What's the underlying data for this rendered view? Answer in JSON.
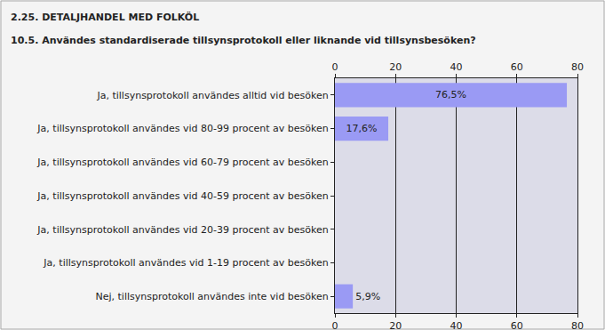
{
  "chart_data": {
    "type": "bar",
    "title": "2.25. DETALJHANDEL MED FOLKÖL",
    "subtitle": "10.5. Användes standardiserade tillsynsprotokoll eller liknande vid tillsynsbesöken?",
    "orientation": "horizontal",
    "categories": [
      "Ja, tillsynsprotokoll användes alltid vid besöken",
      "Ja, tillsynsprotokoll användes vid 80-99 procent av besöken",
      "Ja, tillsynsprotokoll användes vid 60-79 procent av besöken",
      "Ja, tillsynsprotokoll användes vid 40-59 procent av besöken",
      "Ja, tillsynsprotokoll användes vid 20-39 procent av besöken",
      "Ja, tillsynsprotokoll användes vid 1-19 procent av besöken",
      "Nej, tillsynsprotokoll användes inte vid besöken"
    ],
    "values": [
      76.5,
      17.6,
      0,
      0,
      0,
      0,
      5.9
    ],
    "value_labels": [
      "76,5%",
      "17,6%",
      null,
      null,
      null,
      null,
      "5,9%"
    ],
    "data_labels": true,
    "color": "#9a9af4",
    "xlim": [
      0,
      80
    ],
    "xticks": [
      0,
      20,
      40,
      60,
      80
    ],
    "grid": true
  }
}
